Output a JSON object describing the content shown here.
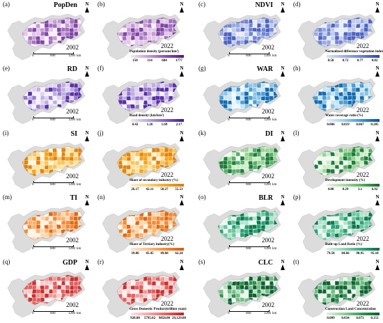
{
  "panels": [
    {
      "label": "(a)",
      "title": "PopDen",
      "year": "2002",
      "ramp": "purple",
      "scale": true,
      "legend": null
    },
    {
      "label": "(b)",
      "title": "",
      "year": "2022",
      "ramp": "purple",
      "scale": false,
      "legend": {
        "title": "Population density  (persons/km²)",
        "ticks": [
          "150",
          "314",
          "684",
          "1777"
        ],
        "colors": [
          "#f3e7f4",
          "#c79ad0",
          "#8e4fb0",
          "#4b1d7a"
        ]
      }
    },
    {
      "label": "(c)",
      "title": "NDVI",
      "year": "2002",
      "ramp": "blue",
      "scale": true,
      "legend": null
    },
    {
      "label": "(d)",
      "title": "",
      "year": "2022",
      "ramp": "blue",
      "scale": false,
      "legend": {
        "title": "Normalized difference vegetation index",
        "ticks": [
          "0.58",
          "0.72",
          "0.77",
          "0.82"
        ],
        "colors": [
          "#dfe4f7",
          "#9fb0e6",
          "#6a80d2",
          "#2f45a8"
        ]
      }
    },
    {
      "label": "(e)",
      "title": "RD",
      "year": "2002",
      "ramp": "violet",
      "scale": true,
      "legend": null
    },
    {
      "label": "(f)",
      "title": "",
      "year": "2022",
      "ramp": "violet",
      "scale": false,
      "legend": {
        "title": "Road density (km/km²)",
        "ticks": [
          "0.42",
          "1.26",
          "1.69",
          "2.17"
        ],
        "colors": [
          "#ece7f5",
          "#b9a7dc",
          "#7d5ec0",
          "#3a1b8f"
        ]
      }
    },
    {
      "label": "(g)",
      "title": "WAR",
      "year": "2002",
      "ramp": "water",
      "scale": true,
      "legend": null
    },
    {
      "label": "(h)",
      "title": "",
      "year": "2022",
      "ramp": "water",
      "scale": false,
      "legend": {
        "title": "Water coverage ratio (%)",
        "ticks": [
          "0.006",
          "0.019",
          "0.067",
          "0.205"
        ],
        "colors": [
          "#e3f2fa",
          "#9ccfe8",
          "#3f94cc",
          "#0b4f96"
        ]
      }
    },
    {
      "label": "(i)",
      "title": "SI",
      "year": "2002",
      "ramp": "orange",
      "scale": true,
      "legend": null
    },
    {
      "label": "(j)",
      "title": "",
      "year": "2022",
      "ramp": "orange",
      "scale": false,
      "legend": {
        "title": "Share of secondary industry (%)",
        "ticks": [
          "26.17",
          "42.11",
          "50.27",
          "55.53"
        ],
        "colors": [
          "#fdf1c8",
          "#fbd070",
          "#f5a623",
          "#e07b00"
        ]
      }
    },
    {
      "label": "(k)",
      "title": "DI",
      "year": "2002",
      "ramp": "green",
      "scale": true,
      "legend": null
    },
    {
      "label": "(l)",
      "title": "",
      "year": "2022",
      "ramp": "green",
      "scale": false,
      "legend": {
        "title": "Development intensity  (%)",
        "ticks": [
          "4.00",
          "0.29",
          "3.1",
          "6.92"
        ],
        "colors": [
          "#e7f5e4",
          "#a8dba0",
          "#52b35a",
          "#11662a"
        ]
      }
    },
    {
      "label": "(m)",
      "title": "TI",
      "year": "2002",
      "ramp": "tangerine",
      "scale": true,
      "legend": null
    },
    {
      "label": "(n)",
      "title": "",
      "year": "2022",
      "ramp": "tangerine",
      "scale": false,
      "legend": {
        "title": "Share of Tertiary industry(%)",
        "ticks": [
          "39.86",
          "45.45",
          "49.60",
          "62.24"
        ],
        "colors": [
          "#fde9d2",
          "#fbbd7e",
          "#f58b33",
          "#d95a07"
        ]
      }
    },
    {
      "label": "(o)",
      "title": "BLR",
      "year": "2002",
      "ramp": "teal",
      "scale": true,
      "legend": null
    },
    {
      "label": "(p)",
      "title": "",
      "year": "2022",
      "ramp": "teal",
      "scale": false,
      "legend": {
        "title": "Built-up Land Ratio (%)",
        "ticks": [
          "79.58",
          "84.66",
          "90.95",
          "95.18"
        ],
        "colors": [
          "#dff3ea",
          "#8fd6b4",
          "#2fa878",
          "#0b6b45"
        ]
      }
    },
    {
      "label": "(q)",
      "title": "GDP",
      "year": "2002",
      "ramp": "red",
      "scale": true,
      "legend": null
    },
    {
      "label": "(r)",
      "title": "",
      "year": "2022",
      "ramp": "red",
      "scale": false,
      "legend": {
        "title": "Gross Domestic Product(trillion yuan)",
        "ticks": [
          "928.00",
          "5795.02",
          "9858.00",
          "29,129.00"
        ],
        "colors": [
          "#fde2e2",
          "#f6a6a6",
          "#e9605f",
          "#c21d24"
        ]
      }
    },
    {
      "label": "(s)",
      "title": "CLC",
      "year": "2002",
      "ramp": "darkgreen",
      "scale": true,
      "legend": null
    },
    {
      "label": "(t)",
      "title": "",
      "year": "2022",
      "ramp": "darkgreen",
      "scale": false,
      "legend": {
        "title": "Construction Land Concentration",
        "ticks": [
          "0.009",
          "0.034",
          "0.073",
          "0.151"
        ],
        "colors": [
          "#e1f2e4",
          "#8ccf9b",
          "#2e9a55",
          "#0c5a2c"
        ]
      }
    }
  ],
  "ramps": {
    "purple": [
      "#f7eef8",
      "#e2c6e8",
      "#c69ad4",
      "#a46fc0",
      "#7e45a3"
    ],
    "blue": [
      "#e8ecfa",
      "#c0cbf0",
      "#98a9e3",
      "#7286d4",
      "#4d63c1"
    ],
    "violet": [
      "#f4f1fa",
      "#ddd3ef",
      "#bfaee1",
      "#9879cc",
      "#5a2eaa"
    ],
    "water": [
      "#eef7fc",
      "#c6e4f4",
      "#8cc5e6",
      "#4b9ed2",
      "#146cb3"
    ],
    "orange": [
      "#fef6df",
      "#fde2a2",
      "#fbc55c",
      "#f5a31f",
      "#e2830a"
    ],
    "green": [
      "#f1f9ef",
      "#cfeccb",
      "#9ad595",
      "#55b066",
      "#1e7d3a"
    ],
    "tangerine": [
      "#fff3e6",
      "#fdd6ad",
      "#fbb26e",
      "#f28a36",
      "#e06812"
    ],
    "teal": [
      "#e9f7f1",
      "#b4e3cf",
      "#6cc7a1",
      "#27a274",
      "#0c7a4f"
    ],
    "red": [
      "#fdeeee",
      "#f9caca",
      "#f19a99",
      "#e3605f",
      "#c7312f"
    ],
    "darkgreen": [
      "#ebf6ed",
      "#b7dfc0",
      "#73be86",
      "#2f9150",
      "#0e6230"
    ]
  },
  "scale": {
    "zero": "0",
    "mid": "600",
    "max": "1200",
    "unit": "km"
  },
  "north_label": "N"
}
